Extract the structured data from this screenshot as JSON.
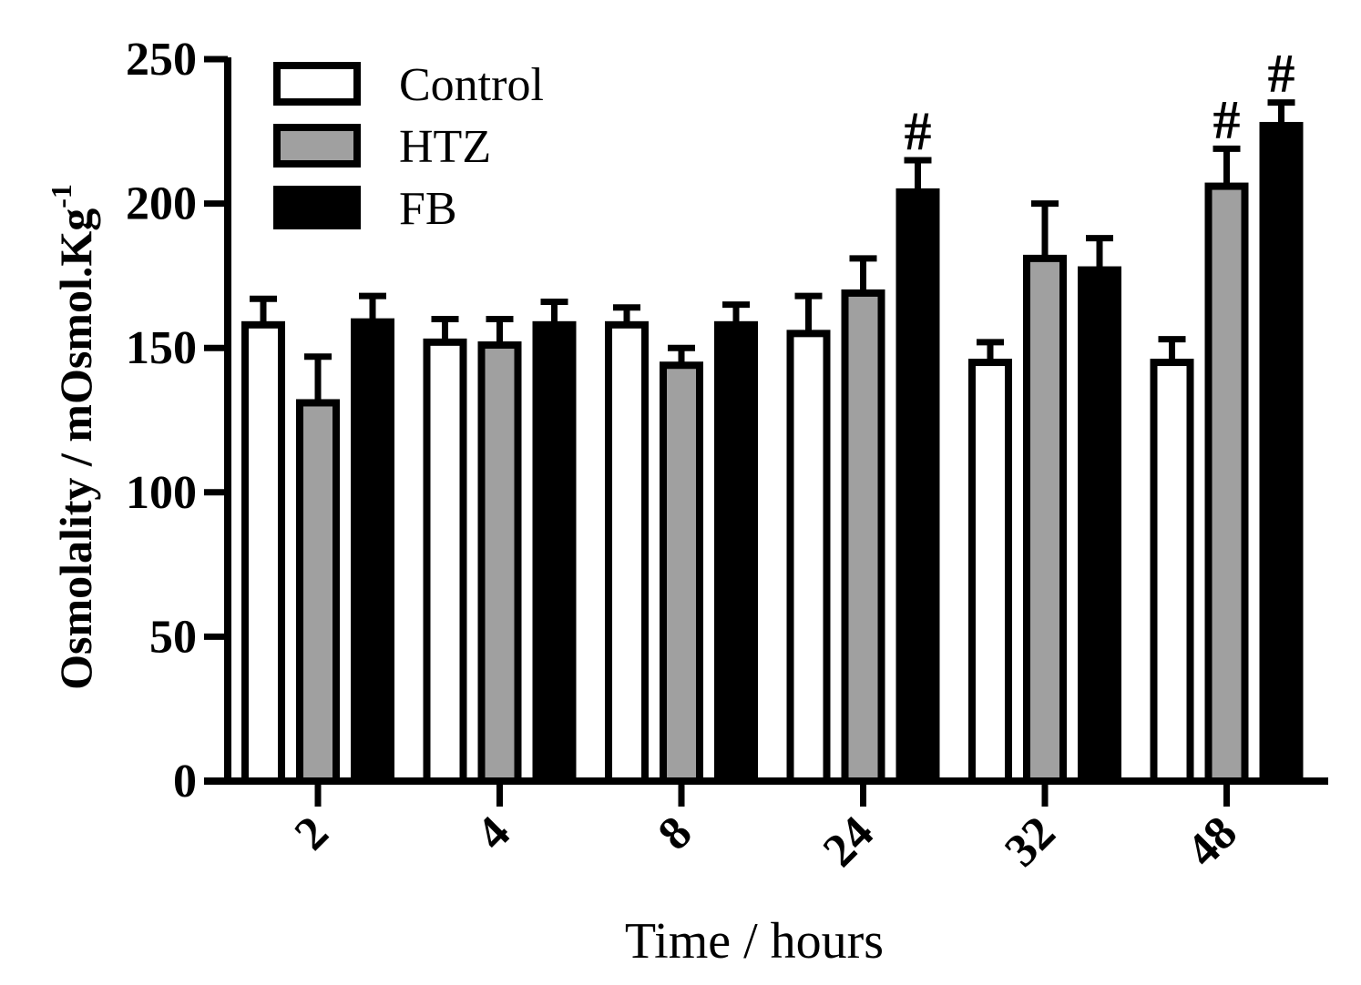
{
  "chart_data": {
    "type": "bar",
    "title": "",
    "xlabel": "Time / hours",
    "ylabel": "Osmolality / mOsmol.Kg",
    "ylabel_superscript": "-1",
    "ylim": [
      0,
      250
    ],
    "yticks": [
      "0",
      "50",
      "100",
      "150",
      "200",
      "250"
    ],
    "categories": [
      "2",
      "4",
      "8",
      "24",
      "32",
      "48"
    ],
    "legend_position": "top-left",
    "series": [
      {
        "name": "Control",
        "color": "#ffffff",
        "values": [
          158,
          152,
          158,
          155,
          145,
          145
        ],
        "errors": [
          9,
          8,
          6,
          13,
          7,
          8
        ],
        "significance": [
          "",
          "",
          "",
          "",
          "",
          ""
        ]
      },
      {
        "name": "HTZ",
        "color": "#a0a0a0",
        "values": [
          131,
          151,
          144,
          169,
          181,
          206
        ],
        "errors": [
          16,
          9,
          6,
          12,
          19,
          13
        ],
        "significance": [
          "",
          "",
          "",
          "",
          "",
          "#"
        ]
      },
      {
        "name": "FB",
        "color": "#000000",
        "values": [
          159,
          158,
          158,
          204,
          177,
          227
        ],
        "errors": [
          9,
          8,
          7,
          11,
          11,
          8
        ],
        "significance": [
          "",
          "",
          "",
          "#",
          "",
          "#"
        ]
      }
    ]
  }
}
